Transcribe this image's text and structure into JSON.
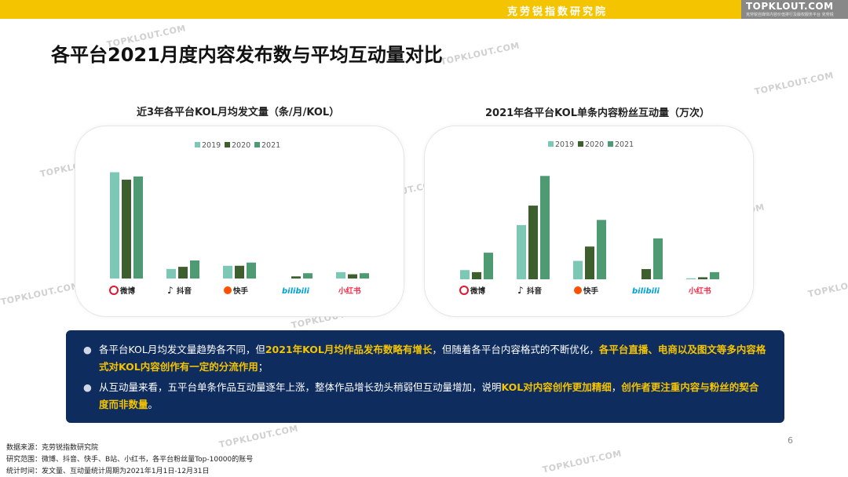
{
  "header": {
    "brand_cn": "克劳锐指数研究院",
    "logo_text": "TOPKLOUT.COM",
    "logo_sub": "克劳锐自媒体内容价值排行及版权服务平台 克劳锐"
  },
  "page": {
    "title": "各平台2021月度内容发布数与平均互动量对比",
    "number": "6"
  },
  "colors": {
    "2019": "#7cc8b4",
    "2020": "#3d5f2d",
    "2021": "#4e9a73",
    "highlight": "#f5c400",
    "summary_bg": "#0e2c5e",
    "topbar": "#f5c400"
  },
  "chart_data": [
    {
      "type": "bar",
      "title": "近3年各平台KOL月均发文量（条/月/KOL）",
      "categories": [
        "微博",
        "抖音",
        "快手",
        "bilibili",
        "小红书"
      ],
      "series": [
        {
          "name": "2019",
          "values": [
            100,
            9,
            12,
            0,
            6
          ]
        },
        {
          "name": "2020",
          "values": [
            93,
            11,
            12,
            2,
            4
          ]
        },
        {
          "name": "2021",
          "values": [
            96,
            17,
            15,
            5,
            5
          ]
        }
      ],
      "ylim": [
        0,
        110
      ],
      "legend": "top-center",
      "grid": false
    },
    {
      "type": "bar",
      "title": "2021年各平台KOL单条内容粉丝互动量（万次）",
      "categories": [
        "微博",
        "抖音",
        "快手",
        "bilibili",
        "小红书"
      ],
      "series": [
        {
          "name": "2019",
          "values": [
            9,
            53,
            18,
            0,
            1
          ]
        },
        {
          "name": "2020",
          "values": [
            7,
            72,
            32,
            10,
            2
          ]
        },
        {
          "name": "2021",
          "values": [
            26,
            101,
            58,
            40,
            7
          ]
        }
      ],
      "ylim": [
        0,
        115
      ],
      "legend": "top-center",
      "grid": false
    }
  ],
  "platform_logos": [
    {
      "icon": "weibo-icon",
      "label": "微博",
      "color": "#e6162d"
    },
    {
      "icon": "douyin-icon",
      "label": "抖音",
      "color": "#111111"
    },
    {
      "icon": "kuaishou-icon",
      "label": "快手",
      "color": "#ff5000"
    },
    {
      "icon": "bilibili-icon",
      "label": "bilibili",
      "color": "#00a1d6"
    },
    {
      "icon": "xiaohongshu-icon",
      "label": "小红书",
      "color": "#ff2442"
    }
  ],
  "summary": {
    "bullet1": {
      "p1": "各平台KOL月均发文量趋势各不同，但",
      "h1": "2021年KOL月均作品发布数略有增长",
      "p2": "，但随着各平台内容格式的不断优化，",
      "h2": "各平台直播、电商以及图文等多内容格式对KOL内容创作有一定的分流作用",
      "p3": "；"
    },
    "bullet2": {
      "p1": "从互动量来看，五平台单条作品互动量逐年上涨，整体作品增长劲头稍弱但互动量增加，说明",
      "h1": "KOL对内容创作更加精细",
      "p2": "，",
      "h2": "创作者更注重内容与粉丝的契合度而非数量",
      "p3": "。"
    }
  },
  "footer": {
    "source": "数据来源：克劳锐指数研究院",
    "scope": "研究范围：微博、抖音、快手、B站、小红书，各平台粉丝量Top-10000的账号",
    "period": "统计时间：发文量、互动量统计周期为2021年1月1日-12月31日"
  },
  "watermark": "TOPKLOUT.COM"
}
